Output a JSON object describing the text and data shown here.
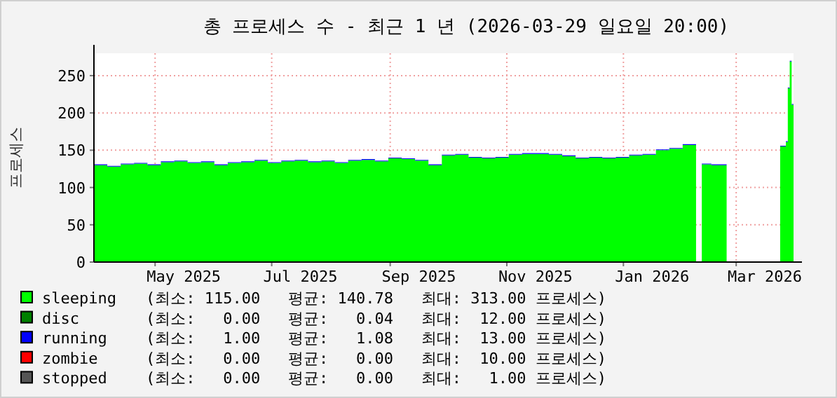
{
  "chart_data": {
    "type": "area",
    "stacked": true,
    "title": "총 프로세스 수 - 최근 1 년 (2026-03-29 일요일 20:00)",
    "ylabel": "프로세스",
    "x": [
      "2025-03-30",
      "2025-04-06",
      "2025-04-13",
      "2025-04-20",
      "2025-04-27",
      "2025-05-04",
      "2025-05-11",
      "2025-05-18",
      "2025-05-25",
      "2025-06-01",
      "2025-06-08",
      "2025-06-15",
      "2025-06-22",
      "2025-06-29",
      "2025-07-06",
      "2025-07-13",
      "2025-07-20",
      "2025-07-27",
      "2025-08-03",
      "2025-08-10",
      "2025-08-17",
      "2025-08-24",
      "2025-08-31",
      "2025-09-07",
      "2025-09-14",
      "2025-09-21",
      "2025-09-28",
      "2025-10-05",
      "2025-10-12",
      "2025-10-19",
      "2025-10-26",
      "2025-11-02",
      "2025-11-09",
      "2025-11-16",
      "2025-11-23",
      "2025-11-30",
      "2025-12-07",
      "2025-12-14",
      "2025-12-21",
      "2025-12-28",
      "2026-01-04",
      "2026-01-11",
      "2026-01-18",
      "2026-01-25",
      "2026-02-01",
      "2026-02-08",
      "2026-02-11",
      "2026-02-16",
      "2026-02-24",
      "2026-03-24",
      "2026-03-27",
      "2026-03-28",
      "2026-03-29",
      "2026-03-30"
    ],
    "series": [
      {
        "name": "sleeping",
        "color": "#00ff00",
        "values": [
          130,
          128,
          131,
          132,
          130,
          134,
          135,
          133,
          134,
          130,
          133,
          134,
          136,
          133,
          135,
          136,
          134,
          135,
          133,
          136,
          137,
          135,
          139,
          138,
          136,
          130,
          143,
          144,
          140,
          139,
          140,
          144,
          145,
          145,
          144,
          142,
          139,
          140,
          139,
          140,
          143,
          144,
          150,
          152,
          157,
          null,
          131,
          130,
          null,
          155,
          161,
          233,
          269,
          211
        ]
      },
      {
        "name": "disc",
        "color": "#008000",
        "values": [
          null,
          null,
          null,
          null,
          null,
          null,
          null,
          null,
          null,
          null,
          null,
          null,
          null,
          null,
          null,
          null,
          null,
          null,
          null,
          null,
          null,
          null,
          null,
          null,
          null,
          null,
          null,
          null,
          null,
          null,
          null,
          null,
          null,
          null,
          null,
          null,
          null,
          null,
          null,
          null,
          null,
          null,
          null,
          null,
          null,
          null,
          null,
          null,
          null,
          null,
          null,
          null,
          null,
          null
        ]
      },
      {
        "name": "running",
        "color": "#0000ff",
        "values": [
          1,
          1,
          1,
          1,
          1,
          1,
          1,
          1,
          1,
          1,
          1,
          1,
          1,
          1,
          1,
          1,
          1,
          1,
          1,
          1,
          1,
          1,
          1,
          1,
          1,
          1,
          1,
          1,
          1,
          1,
          1,
          1,
          1,
          1,
          1,
          1,
          1,
          1,
          1,
          1,
          1,
          1,
          1,
          1,
          1,
          null,
          1,
          1,
          null,
          1,
          1,
          1,
          1,
          1
        ]
      },
      {
        "name": "zombie",
        "color": "#ff0000",
        "values": [
          null,
          null,
          null,
          null,
          null,
          null,
          null,
          null,
          null,
          null,
          null,
          null,
          null,
          null,
          null,
          null,
          null,
          null,
          null,
          null,
          null,
          null,
          null,
          null,
          null,
          null,
          null,
          null,
          null,
          null,
          null,
          null,
          null,
          null,
          null,
          null,
          null,
          null,
          null,
          null,
          null,
          null,
          null,
          null,
          null,
          null,
          null,
          null,
          null,
          null,
          null,
          null,
          null,
          null
        ]
      },
      {
        "name": "stopped",
        "color": "#555555",
        "values": [
          null,
          null,
          null,
          null,
          null,
          null,
          null,
          null,
          null,
          null,
          null,
          null,
          null,
          null,
          null,
          null,
          null,
          null,
          null,
          null,
          null,
          null,
          null,
          null,
          null,
          null,
          null,
          null,
          null,
          null,
          null,
          null,
          null,
          null,
          null,
          null,
          null,
          null,
          null,
          null,
          null,
          null,
          null,
          null,
          null,
          null,
          null,
          null,
          null,
          null,
          null,
          null,
          null,
          null
        ]
      }
    ],
    "annotations": [
      "(최소: 115.00   평균: 140.78   최대: 313.00 프로세스)",
      "(최소:   0.00   평균:   0.04   최대:  12.00 프로세스)",
      "(최소:   1.00   평균:   1.08   최대:  13.00 프로세스)",
      "(최소:   0.00   평균:   0.00   최대:  10.00 프로세스)",
      "(최소:   0.00   평균:   0.00   최대:   1.00 프로세스)"
    ],
    "xlim": [
      "2025-03-30",
      "2026-03-31"
    ],
    "xticks": [
      {
        "value": "2025-05-01",
        "label": null
      },
      {
        "value": "2025-05-16",
        "label": "May 2025"
      },
      {
        "value": "2025-07-01",
        "label": null
      },
      {
        "value": "2025-07-16",
        "label": "Jul 2025"
      },
      {
        "value": "2025-09-01",
        "label": null
      },
      {
        "value": "2025-09-16",
        "label": "Sep 2025"
      },
      {
        "value": "2025-11-01",
        "label": null
      },
      {
        "value": "2025-11-16",
        "label": "Nov 2025"
      },
      {
        "value": "2026-01-01",
        "label": null
      },
      {
        "value": "2026-01-16",
        "label": "Jan 2026"
      },
      {
        "value": "2026-03-01",
        "label": null
      },
      {
        "value": "2026-03-16",
        "label": "Mar 2026"
      }
    ],
    "ylim": [
      0,
      280
    ],
    "yticks": [
      0,
      50,
      100,
      150,
      200,
      250
    ],
    "grid": true,
    "legend": "bottom"
  }
}
